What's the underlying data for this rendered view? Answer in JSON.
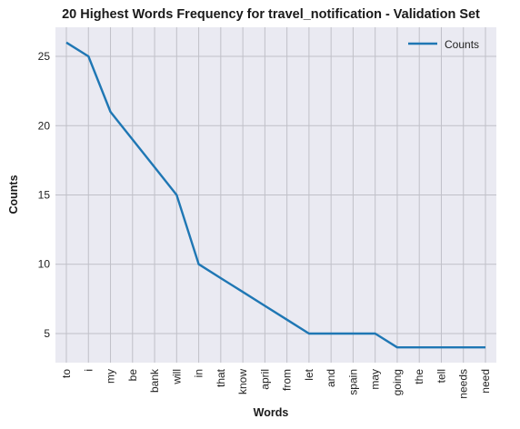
{
  "chart_data": {
    "type": "line",
    "title": "20 Highest Words Frequency for travel_notification - Validation Set",
    "xlabel": "Words",
    "ylabel": "Counts",
    "categories": [
      "to",
      "i",
      "my",
      "be",
      "bank",
      "will",
      "in",
      "that",
      "know",
      "april",
      "from",
      "let",
      "and",
      "spain",
      "may",
      "going",
      "the",
      "tell",
      "needs",
      "need"
    ],
    "series": [
      {
        "name": "Counts",
        "values": [
          26,
          25,
          21,
          19,
          17,
          15,
          10,
          9,
          8,
          7,
          6,
          5,
          5,
          5,
          5,
          4,
          4,
          4,
          4,
          4
        ],
        "color": "#1f77b4"
      }
    ],
    "ylim": [
      2.9,
      27.1
    ],
    "yticks": [
      5,
      10,
      15,
      20,
      25
    ],
    "grid": true,
    "legend_position": "top-right",
    "background": "#eaeaf2",
    "grid_color": "#c0c0c8"
  }
}
